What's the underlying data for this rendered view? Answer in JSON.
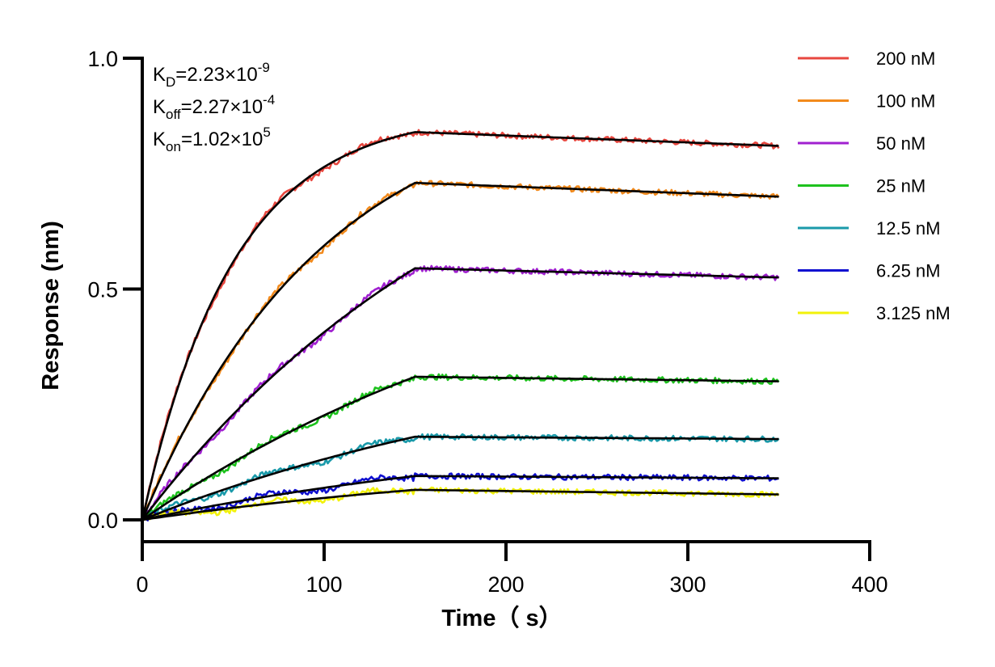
{
  "chart_data": {
    "type": "line",
    "title": "",
    "xlabel": "Time（ s）",
    "ylabel": "Response (nm)",
    "xlim": [
      0,
      400
    ],
    "ylim": [
      -0.05,
      1.0
    ],
    "x_ticks": [
      "0",
      "100",
      "200",
      "300",
      "400"
    ],
    "y_ticks": [
      "0.0",
      "0.5",
      "1.0"
    ],
    "association_end_s": 150,
    "dissociation_end_s": 350,
    "legend_position": "right",
    "annotations": [
      {
        "main": "K",
        "sub": "D",
        "rest": "=2.23×10",
        "sup": "-9"
      },
      {
        "main": "K",
        "sub": "off",
        "rest": "=2.27×10",
        "sup": "-4"
      },
      {
        "main": "K",
        "sub": "on",
        "rest": "=1.02×10",
        "sup": "5"
      }
    ],
    "fit_color": "#000000",
    "series": [
      {
        "name": "200 nM",
        "color": "#e8473f",
        "plateau": 0.84,
        "end_value": 0.81
      },
      {
        "name": "100 nM",
        "color": "#f28a1c",
        "plateau": 0.73,
        "end_value": 0.7
      },
      {
        "name": "50 nM",
        "color": "#a020d0",
        "plateau": 0.545,
        "end_value": 0.525
      },
      {
        "name": "25 nM",
        "color": "#1ec21e",
        "plateau": 0.31,
        "end_value": 0.3
      },
      {
        "name": "12.5 nM",
        "color": "#1a9aaa",
        "plateau": 0.18,
        "end_value": 0.175
      },
      {
        "name": "6.25 nM",
        "color": "#1010d0",
        "plateau": 0.095,
        "end_value": 0.09
      },
      {
        "name": "3.125 nM",
        "color": "#f2f20a",
        "plateau": 0.065,
        "end_value": 0.055
      }
    ]
  }
}
